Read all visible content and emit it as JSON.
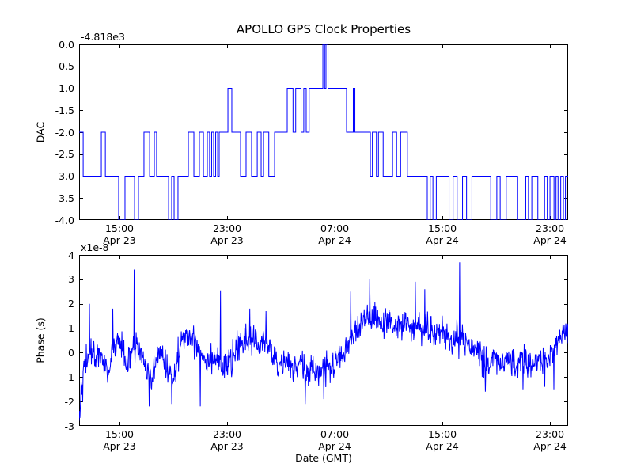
{
  "figure": {
    "title": "APOLLO GPS Clock Properties",
    "background_color": "#ffffff",
    "line_color": "#0000ff",
    "axes_color": "#000000"
  },
  "chart_data": [
    {
      "type": "line",
      "name": "dac-subplot",
      "title": "APOLLO GPS Clock Properties",
      "ylabel": "DAC",
      "y_offset_text": "-4.818e3",
      "ylim": [
        -4.0,
        0.0
      ],
      "ytick_labels": [
        "0.0",
        "-0.5",
        "-1.0",
        "-1.5",
        "-2.0",
        "-2.5",
        "-3.0",
        "-3.5",
        "-4.0"
      ],
      "x_span_hours": [
        0,
        36.35
      ],
      "xtick_hours": [
        3,
        11,
        19,
        27,
        35
      ],
      "xtick_labels": [
        [
          "15:00",
          "Apr 23"
        ],
        [
          "23:00",
          "Apr 23"
        ],
        [
          "07:00",
          "Apr 24"
        ],
        [
          "15:00",
          "Apr 24"
        ],
        [
          "23:00",
          "Apr 24"
        ]
      ],
      "line_style": "steps-post",
      "grid": false,
      "legend": "none",
      "series_t_hours_dac": [
        [
          0,
          -2
        ],
        [
          0.3,
          -3
        ],
        [
          1.65,
          -2
        ],
        [
          1.95,
          -3
        ],
        [
          2.94,
          -4
        ],
        [
          3.41,
          -3
        ],
        [
          4.12,
          -4
        ],
        [
          4.41,
          -3
        ],
        [
          4.82,
          -2
        ],
        [
          5.24,
          -3
        ],
        [
          5.59,
          -2
        ],
        [
          5.76,
          -3
        ],
        [
          6.65,
          -4
        ],
        [
          6.88,
          -3
        ],
        [
          7.06,
          -4
        ],
        [
          7.35,
          -3
        ],
        [
          8.12,
          -2
        ],
        [
          8.53,
          -3
        ],
        [
          8.94,
          -2
        ],
        [
          9.24,
          -3
        ],
        [
          9.53,
          -2
        ],
        [
          9.7,
          -3
        ],
        [
          9.85,
          -2
        ],
        [
          10.0,
          -3
        ],
        [
          10.15,
          -2
        ],
        [
          10.3,
          -3
        ],
        [
          10.41,
          -2
        ],
        [
          11.06,
          -1
        ],
        [
          11.35,
          -2
        ],
        [
          12.0,
          -3
        ],
        [
          12.41,
          -2
        ],
        [
          12.82,
          -3
        ],
        [
          13.24,
          -2
        ],
        [
          13.53,
          -3
        ],
        [
          13.71,
          -2
        ],
        [
          14.1,
          -3
        ],
        [
          14.53,
          -2
        ],
        [
          15.47,
          -1
        ],
        [
          15.9,
          -2
        ],
        [
          16.1,
          -1
        ],
        [
          16.5,
          -2
        ],
        [
          16.7,
          -1
        ],
        [
          16.88,
          -2
        ],
        [
          17.1,
          -1
        ],
        [
          18.12,
          0
        ],
        [
          18.25,
          -1
        ],
        [
          18.35,
          0
        ],
        [
          18.5,
          -1
        ],
        [
          19.88,
          -2
        ],
        [
          20.38,
          -1
        ],
        [
          20.5,
          -2
        ],
        [
          21.65,
          -3
        ],
        [
          21.8,
          -2
        ],
        [
          22.1,
          -3
        ],
        [
          22.25,
          -2
        ],
        [
          22.6,
          -3
        ],
        [
          23.3,
          -2
        ],
        [
          23.6,
          -3
        ],
        [
          23.9,
          -2
        ],
        [
          24.4,
          -3
        ],
        [
          25.88,
          -4
        ],
        [
          26.1,
          -3
        ],
        [
          26.3,
          -4
        ],
        [
          26.55,
          -3
        ],
        [
          27.5,
          -4
        ],
        [
          27.8,
          -3
        ],
        [
          28.1,
          -4
        ],
        [
          28.5,
          -3
        ],
        [
          28.8,
          -4
        ],
        [
          29.2,
          -3
        ],
        [
          30.6,
          -4
        ],
        [
          31.05,
          -3
        ],
        [
          31.3,
          -4
        ],
        [
          31.75,
          -3
        ],
        [
          32.6,
          -4
        ],
        [
          33.2,
          -3
        ],
        [
          33.4,
          -4
        ],
        [
          33.65,
          -3
        ],
        [
          34.1,
          -4
        ],
        [
          34.6,
          -3
        ],
        [
          34.8,
          -4
        ],
        [
          35.0,
          -3
        ],
        [
          35.3,
          -4
        ],
        [
          35.45,
          -3
        ],
        [
          35.6,
          -4
        ],
        [
          35.8,
          -3
        ],
        [
          36.0,
          -4
        ],
        [
          36.15,
          -3
        ],
        [
          36.35,
          -3
        ]
      ]
    },
    {
      "type": "line",
      "name": "phase-subplot",
      "ylabel": "Phase (s)",
      "xlabel": "Date (GMT)",
      "y_offset_text": "x1e-8",
      "y_unit_scale": "1e-8 s",
      "ylim": [
        -3,
        4
      ],
      "ytick_labels": [
        "4",
        "3",
        "2",
        "1",
        "0",
        "-1",
        "-2",
        "-3"
      ],
      "x_span_hours": [
        0,
        36.35
      ],
      "xtick_hours": [
        3,
        11,
        19,
        27,
        35
      ],
      "xtick_labels": [
        [
          "15:00",
          "Apr 23"
        ],
        [
          "23:00",
          "Apr 23"
        ],
        [
          "07:00",
          "Apr 24"
        ],
        [
          "15:00",
          "Apr 24"
        ],
        [
          "23:00",
          "Apr 24"
        ]
      ],
      "grid": false,
      "legend": "none",
      "mean_curve_t_hours_val": [
        [
          0,
          -2.5
        ],
        [
          0.2,
          -1.2
        ],
        [
          0.5,
          -0.4
        ],
        [
          0.8,
          0.0
        ],
        [
          1.2,
          -0.2
        ],
        [
          1.5,
          0.1
        ],
        [
          1.8,
          -0.5
        ],
        [
          2.1,
          -0.9
        ],
        [
          2.5,
          0.1
        ],
        [
          2.9,
          0.5
        ],
        [
          3.3,
          0.0
        ],
        [
          3.6,
          -0.5
        ],
        [
          4.0,
          0.1
        ],
        [
          4.3,
          0.4
        ],
        [
          4.7,
          -0.3
        ],
        [
          5.1,
          -0.9
        ],
        [
          5.4,
          -1.0
        ],
        [
          5.8,
          -0.3
        ],
        [
          6.1,
          0.0
        ],
        [
          6.5,
          -0.6
        ],
        [
          6.9,
          -1.0
        ],
        [
          7.2,
          -0.5
        ],
        [
          7.6,
          0.4
        ],
        [
          8.0,
          0.7
        ],
        [
          8.4,
          0.6
        ],
        [
          8.8,
          0.3
        ],
        [
          9.2,
          -0.1
        ],
        [
          9.6,
          -0.3
        ],
        [
          10.0,
          -0.1
        ],
        [
          10.4,
          -0.4
        ],
        [
          10.9,
          -0.6
        ],
        [
          11.4,
          -0.3
        ],
        [
          11.9,
          0.2
        ],
        [
          12.4,
          0.6
        ],
        [
          12.9,
          0.5
        ],
        [
          13.4,
          0.3
        ],
        [
          13.9,
          0.5
        ],
        [
          14.4,
          -0.1
        ],
        [
          14.9,
          -0.6
        ],
        [
          15.4,
          -0.4
        ],
        [
          15.9,
          -0.7
        ],
        [
          16.4,
          -0.4
        ],
        [
          16.9,
          -0.9
        ],
        [
          17.4,
          -0.6
        ],
        [
          17.9,
          -0.8
        ],
        [
          18.4,
          -0.5
        ],
        [
          18.9,
          -0.7
        ],
        [
          19.4,
          -0.3
        ],
        [
          19.9,
          0.2
        ],
        [
          20.4,
          0.7
        ],
        [
          20.9,
          1.1
        ],
        [
          21.4,
          1.4
        ],
        [
          21.9,
          1.3
        ],
        [
          22.4,
          1.1
        ],
        [
          22.9,
          1.3
        ],
        [
          23.4,
          1.0
        ],
        [
          23.9,
          1.1
        ],
        [
          24.4,
          1.3
        ],
        [
          24.9,
          1.0
        ],
        [
          25.4,
          0.9
        ],
        [
          25.9,
          1.1
        ],
        [
          26.4,
          0.7
        ],
        [
          26.9,
          0.9
        ],
        [
          27.4,
          0.6
        ],
        [
          27.9,
          0.5
        ],
        [
          28.4,
          0.6
        ],
        [
          28.9,
          0.3
        ],
        [
          29.4,
          0.1
        ],
        [
          29.9,
          -0.2
        ],
        [
          30.4,
          -0.5
        ],
        [
          30.9,
          -0.1
        ],
        [
          31.4,
          -0.5
        ],
        [
          31.9,
          -0.2
        ],
        [
          32.4,
          -0.6
        ],
        [
          32.9,
          -0.2
        ],
        [
          33.4,
          -0.5
        ],
        [
          33.9,
          -0.4
        ],
        [
          34.4,
          -0.2
        ],
        [
          34.9,
          -0.3
        ],
        [
          35.4,
          0.2
        ],
        [
          35.9,
          0.7
        ],
        [
          36.35,
          1.1
        ]
      ],
      "spikes_t_hours_val": [
        [
          0.76,
          2.0
        ],
        [
          2.5,
          1.8
        ],
        [
          4.1,
          3.4
        ],
        [
          5.2,
          -2.2
        ],
        [
          6.9,
          -2.1
        ],
        [
          9.0,
          -2.2
        ],
        [
          10.5,
          2.55
        ],
        [
          12.7,
          1.8
        ],
        [
          13.9,
          1.7
        ],
        [
          16.8,
          -2.1
        ],
        [
          18.2,
          -1.9
        ],
        [
          20.2,
          2.5
        ],
        [
          21.6,
          3.0
        ],
        [
          25.0,
          2.9
        ],
        [
          25.7,
          2.6
        ],
        [
          28.3,
          3.7
        ],
        [
          30.2,
          -1.6
        ],
        [
          33.0,
          -1.5
        ],
        [
          34.6,
          -1.4
        ],
        [
          35.3,
          -1.5
        ]
      ],
      "noise_sigma": 0.3,
      "noise_seed": 42
    }
  ]
}
